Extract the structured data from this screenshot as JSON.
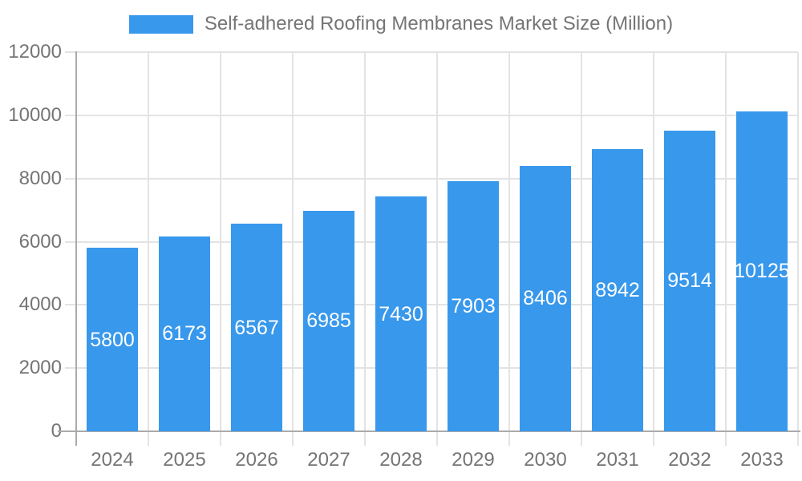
{
  "chart_data": {
    "type": "bar",
    "title": "Self-adhered Roofing Membranes Market Size (Million)",
    "categories": [
      "2024",
      "2025",
      "2026",
      "2027",
      "2028",
      "2029",
      "2030",
      "2031",
      "2032",
      "2033"
    ],
    "series": [
      {
        "name": "Self-adhered Roofing Membranes Market Size (Million)",
        "values": [
          5800,
          6173,
          6567,
          6985,
          7430,
          7903,
          8406,
          8942,
          9514,
          10125
        ]
      }
    ],
    "xlabel": "",
    "ylabel": "",
    "ylim": [
      0,
      12000
    ],
    "yticks": [
      0,
      2000,
      4000,
      6000,
      8000,
      10000,
      12000
    ],
    "grid": true,
    "legend_position": "top",
    "value_label_position": "inside-center"
  },
  "colors": {
    "bar": "#3898EC",
    "axis_text": "#757575",
    "axis_line": "#ababab",
    "gridline": "#e3e3e3",
    "value_label_text": "#ffffff",
    "background": "#ffffff"
  }
}
